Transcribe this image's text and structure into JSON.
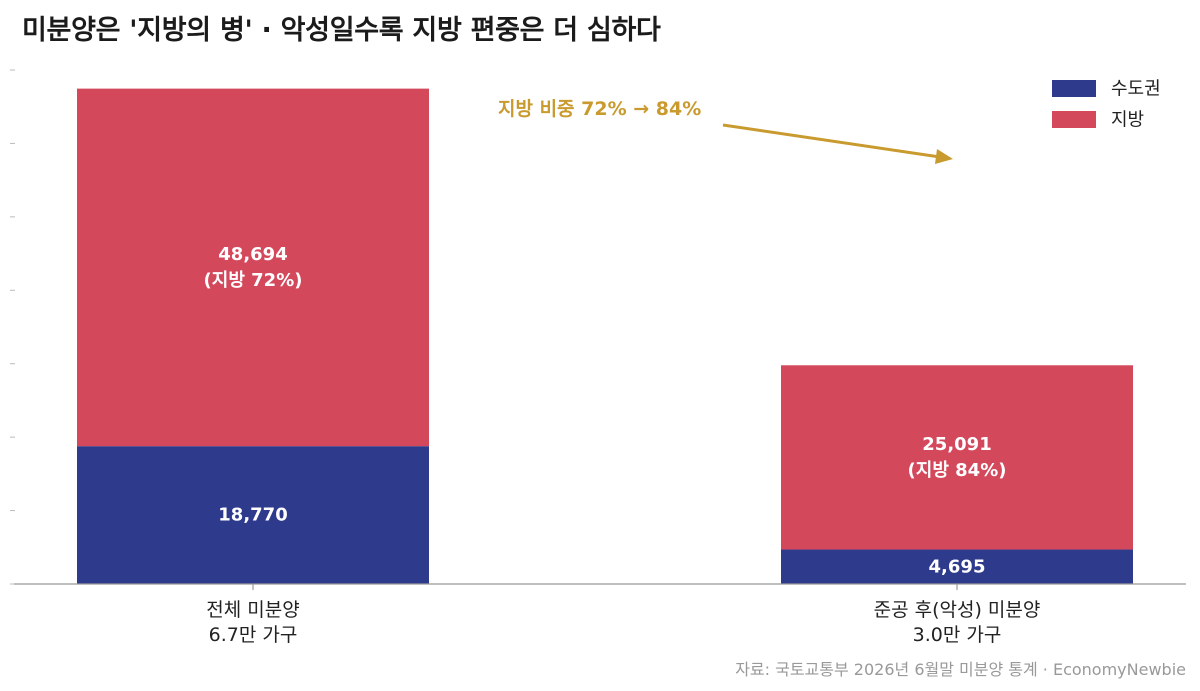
{
  "title": "미분양은 '지방의 병'  ·  악성일수록 지방 편중은 더 심하다",
  "source": "자료: 국토교통부 2026년 6월말 미분양 통계 · EconomyNewbie",
  "chart_data": {
    "type": "bar",
    "stacked": true,
    "categories": [
      [
        "전체 미분양",
        "6.7만 가구"
      ],
      [
        "준공 후(악성) 미분양",
        "3.0만 가구"
      ]
    ],
    "series": [
      {
        "name": "수도권",
        "values": [
          18770,
          4695
        ],
        "labels": [
          "18,770",
          "4,695"
        ],
        "color": "#2e3a8c"
      },
      {
        "name": "지방",
        "values": [
          48694,
          25091
        ],
        "labels": [
          [
            "48,694",
            "(지방 72%)"
          ],
          [
            "25,091",
            "(지방 84%)"
          ]
        ],
        "color": "#d4485c"
      }
    ],
    "ylim": [
      0,
      70000
    ],
    "grid": false,
    "legend_position": "top-right",
    "annotation": {
      "text": "지방 비중 72% → 84%",
      "color": "#c99a2e"
    },
    "axis_color": "#999999"
  }
}
